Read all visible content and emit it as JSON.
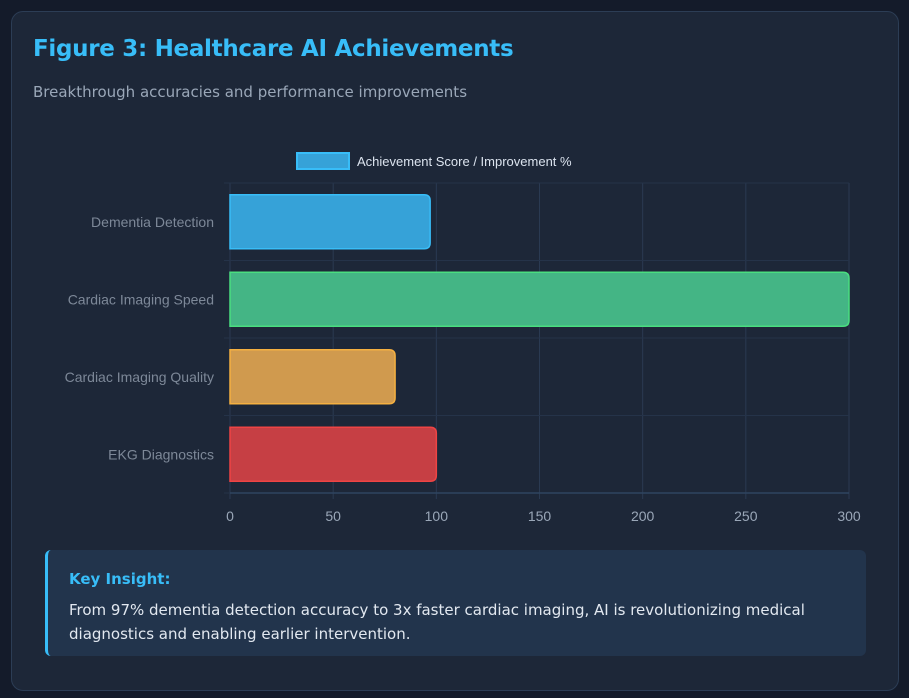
{
  "header": {
    "title": "Figure 3: Healthcare AI Achievements",
    "subtitle": "Breakthrough accuracies and performance improvements"
  },
  "chart_data": {
    "type": "bar",
    "orientation": "horizontal",
    "legend": "Achievement Score / Improvement %",
    "legend_position": "top",
    "categories": [
      "Dementia Detection",
      "Cardiac Imaging Speed",
      "Cardiac Imaging Quality",
      "EKG Diagnostics"
    ],
    "values": [
      97,
      300,
      80,
      100
    ],
    "colors": [
      "#36a2d8",
      "#44b585",
      "#d09a4e",
      "#c63f44"
    ],
    "borders": [
      "#38bdf8",
      "#4ade80",
      "#f5b041",
      "#ef4444"
    ],
    "xlim": [
      0,
      300
    ],
    "xticks": [
      0,
      50,
      100,
      150,
      200,
      250,
      300
    ],
    "grid": true
  },
  "insight": {
    "heading": "Key Insight:",
    "text": "From 97% dementia detection accuracy to 3x faster cardiac imaging, AI is revolutionizing medical diagnostics and enabling earlier intervention."
  }
}
